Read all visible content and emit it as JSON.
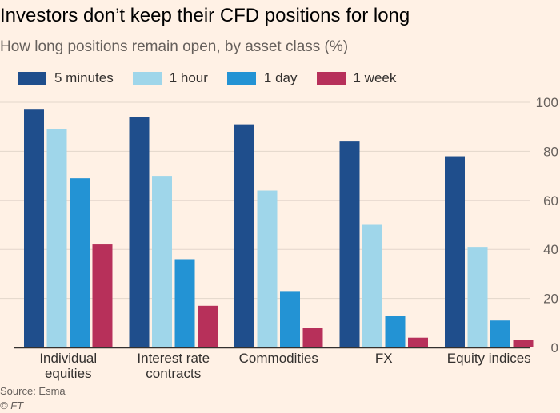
{
  "header": {
    "title": "Investors don’t keep their CFD positions for long",
    "subtitle": "How long positions remain open, by asset class (%)"
  },
  "footer": {
    "source": "Source: Esma",
    "credit": "© FT"
  },
  "colors": {
    "background": "#fff1e5",
    "gridline": "#e3d6cb",
    "axis": "#33302e"
  },
  "chart_data": {
    "type": "bar",
    "categories": [
      [
        "Individual",
        "equities"
      ],
      [
        "Interest rate",
        "contracts"
      ],
      [
        "Commodities"
      ],
      [
        "FX"
      ],
      [
        "Equity indices"
      ]
    ],
    "series": [
      {
        "name": "5 minutes",
        "color": "#1f4e8c",
        "values": [
          97,
          94,
          91,
          84,
          78
        ]
      },
      {
        "name": "1 hour",
        "color": "#9fd6ea",
        "values": [
          89,
          70,
          64,
          50,
          41
        ]
      },
      {
        "name": "1 day",
        "color": "#2393d4",
        "values": [
          69,
          36,
          23,
          13,
          11
        ]
      },
      {
        "name": "1 week",
        "color": "#b7305a",
        "values": [
          42,
          17,
          8,
          4,
          3
        ]
      }
    ],
    "yticks": [
      0,
      20,
      40,
      60,
      80,
      100
    ],
    "ylim": [
      0,
      100
    ],
    "grid": true,
    "legend_position": "top-left"
  }
}
